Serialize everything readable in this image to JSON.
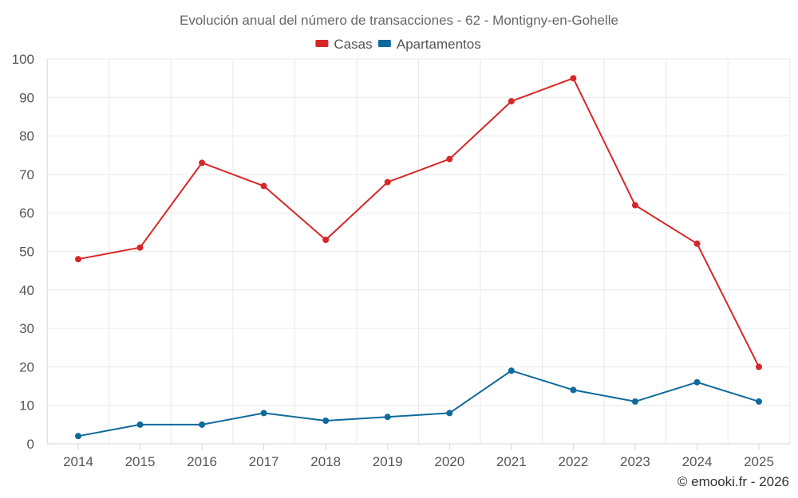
{
  "chart_data": {
    "type": "line",
    "title": "Evolución anual del número de transacciones - 62 - Montigny-en-Gohelle",
    "xlabel": "",
    "ylabel": "",
    "categories": [
      "2014",
      "2015",
      "2016",
      "2017",
      "2018",
      "2019",
      "2020",
      "2021",
      "2022",
      "2023",
      "2024",
      "2025"
    ],
    "ylim": [
      0,
      100
    ],
    "yticks": [
      0,
      10,
      20,
      30,
      40,
      50,
      60,
      70,
      80,
      90,
      100
    ],
    "grid": true,
    "legend_position": "top-center",
    "series": [
      {
        "name": "Casas",
        "color": "#d62728",
        "values": [
          48,
          51,
          73,
          67,
          53,
          68,
          74,
          89,
          95,
          62,
          52,
          20
        ]
      },
      {
        "name": "Apartamentos",
        "color": "#0f6a9c",
        "values": [
          2,
          5,
          5,
          8,
          6,
          7,
          8,
          19,
          14,
          11,
          16,
          11
        ]
      }
    ]
  },
  "credit": "© emooki.fr - 2026"
}
